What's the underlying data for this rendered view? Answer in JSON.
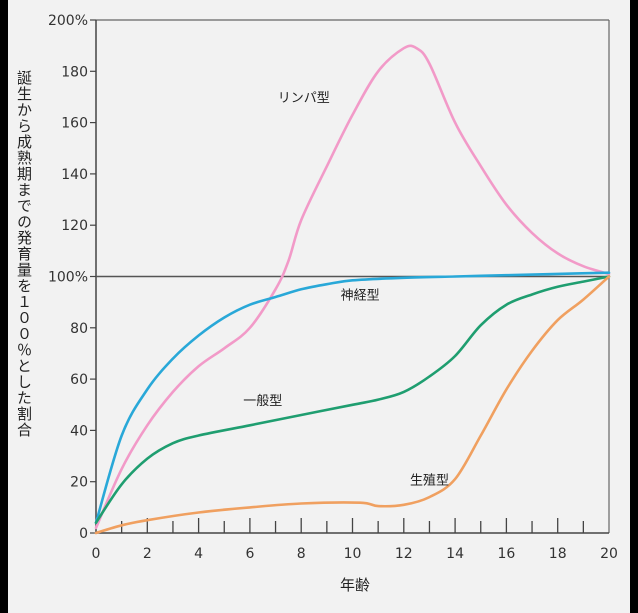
{
  "chart_data": {
    "type": "line",
    "xlabel": "年齢",
    "ylabel": "誕生から成熟期までの発育量を１００％とした割合",
    "xlim": [
      0,
      20
    ],
    "ylim": [
      0,
      200
    ],
    "x_ticks": [
      "0",
      "2",
      "4",
      "6",
      "8",
      "10",
      "12",
      "14",
      "16",
      "18",
      "20"
    ],
    "y_ticks": [
      "0",
      "20",
      "40",
      "60",
      "80",
      "100%",
      "120",
      "140",
      "160",
      "180",
      "200%"
    ],
    "reference_line": 100,
    "grid": false,
    "series": [
      {
        "name": "リンパ型",
        "color": "#f29ac8",
        "points": [
          [
            0,
            2
          ],
          [
            1,
            25
          ],
          [
            2,
            42
          ],
          [
            3,
            55
          ],
          [
            4,
            65
          ],
          [
            5,
            72
          ],
          [
            6,
            80
          ],
          [
            7,
            95
          ],
          [
            7.5,
            106
          ],
          [
            8,
            122
          ],
          [
            9,
            143
          ],
          [
            10,
            163
          ],
          [
            11,
            180
          ],
          [
            12,
            189
          ],
          [
            12.5,
            189
          ],
          [
            13,
            183
          ],
          [
            14,
            160
          ],
          [
            15,
            143
          ],
          [
            16,
            128
          ],
          [
            17,
            117
          ],
          [
            18,
            109
          ],
          [
            19,
            104
          ],
          [
            20,
            101
          ]
        ]
      },
      {
        "name": "神経型",
        "color": "#29a8d8",
        "points": [
          [
            0,
            4
          ],
          [
            1,
            38
          ],
          [
            2,
            56
          ],
          [
            3,
            68
          ],
          [
            4,
            77
          ],
          [
            5,
            84
          ],
          [
            6,
            89
          ],
          [
            7,
            92
          ],
          [
            8,
            95
          ],
          [
            9,
            97
          ],
          [
            10,
            98.5
          ],
          [
            12,
            99.5
          ],
          [
            14,
            100
          ],
          [
            16,
            100.5
          ],
          [
            18,
            101
          ],
          [
            20,
            101.5
          ]
        ]
      },
      {
        "name": "一般型",
        "color": "#1f9e70",
        "points": [
          [
            0,
            4
          ],
          [
            1,
            19
          ],
          [
            2,
            29
          ],
          [
            3,
            35
          ],
          [
            4,
            38
          ],
          [
            6,
            42
          ],
          [
            8,
            46
          ],
          [
            10,
            50
          ],
          [
            11,
            52
          ],
          [
            12,
            55
          ],
          [
            13,
            61
          ],
          [
            14,
            69
          ],
          [
            15,
            81
          ],
          [
            16,
            89
          ],
          [
            17,
            93
          ],
          [
            18,
            96
          ],
          [
            19,
            98
          ],
          [
            20,
            100
          ]
        ]
      },
      {
        "name": "生殖型",
        "color": "#f0a060",
        "points": [
          [
            0,
            0
          ],
          [
            1,
            3
          ],
          [
            2,
            5
          ],
          [
            4,
            8
          ],
          [
            6,
            10
          ],
          [
            8,
            11.5
          ],
          [
            10.3,
            11.8
          ],
          [
            11,
            10.5
          ],
          [
            12,
            11
          ],
          [
            13,
            14
          ],
          [
            14,
            21
          ],
          [
            15,
            38
          ],
          [
            16,
            56
          ],
          [
            17,
            71
          ],
          [
            18,
            83
          ],
          [
            19,
            91
          ],
          [
            20,
            100
          ]
        ]
      }
    ]
  }
}
